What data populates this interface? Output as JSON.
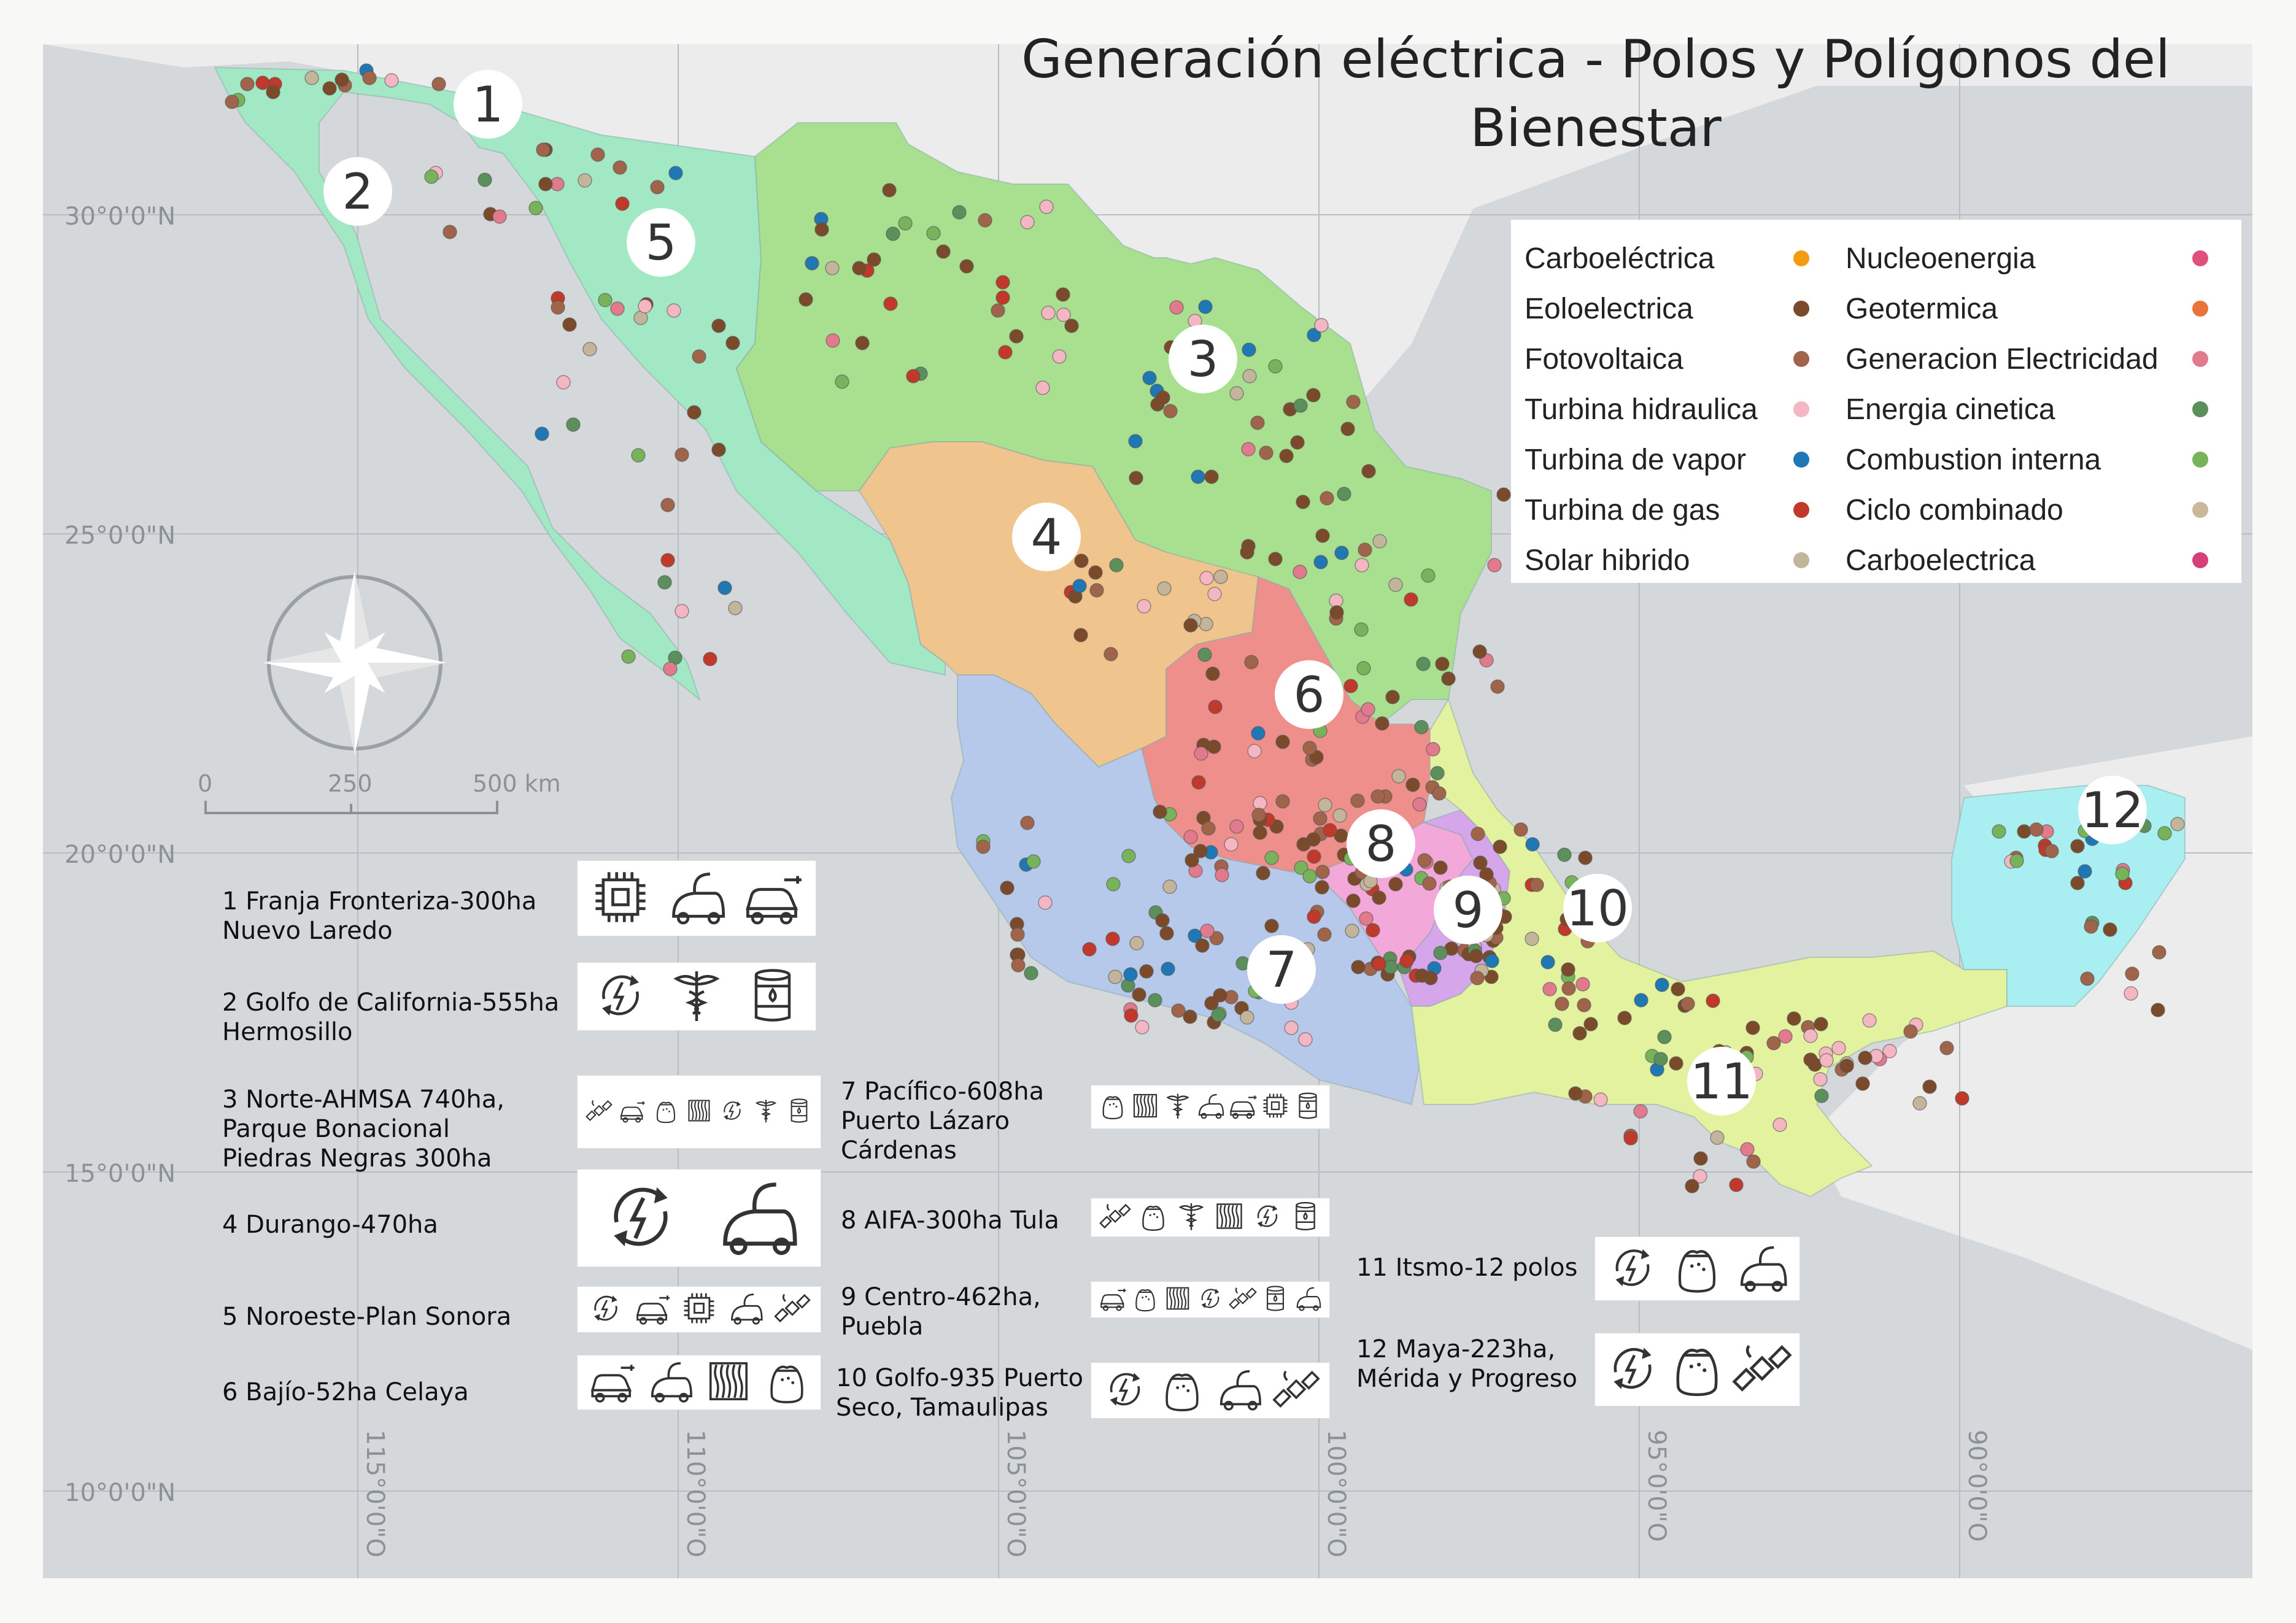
{
  "title": "Generación eléctrica - Polos y Polígonos del Bienestar",
  "legend": {
    "col1": [
      {
        "label": "Carboeléctrica",
        "color": "#f39c12"
      },
      {
        "label": "Eoloelectrica",
        "color": "#7b4a2a"
      },
      {
        "label": "Fotovoltaica",
        "color": "#a0644a"
      },
      {
        "label": "Turbina hidraulica",
        "color": "#f4b6c2"
      },
      {
        "label": "Turbina de vapor",
        "color": "#1f77b4"
      },
      {
        "label": "Turbina de gas",
        "color": "#c0392b"
      },
      {
        "label": "Solar hibrido",
        "color": "#c2b59b"
      }
    ],
    "col2": [
      {
        "label": "Nucleoenergia",
        "color": "#e0507a"
      },
      {
        "label": "Geotermica",
        "color": "#e8743b"
      },
      {
        "label": "Generacion Electricidad",
        "color": "#e07a8c"
      },
      {
        "label": "Energia cinetica",
        "color": "#5b8f5b"
      },
      {
        "label": "Combustion interna",
        "color": "#77b35a"
      },
      {
        "label": "Ciclo combinado",
        "color": "#c9b99a"
      },
      {
        "label": "Carboelectrica",
        "color": "#d64078"
      }
    ]
  },
  "graticule": {
    "lat": [
      "30°0'0\"N",
      "25°0'0\"N",
      "20°0'0\"N",
      "15°0'0\"N",
      "10°0'0\"N"
    ],
    "lon": [
      "115°0'0\"O",
      "110°0'0\"O",
      "105°0'0\"O",
      "100°0'0\"O",
      "95°0'0\"O",
      "90°0'0\"O"
    ]
  },
  "scale": {
    "labels": [
      "0",
      "250",
      "500 km"
    ]
  },
  "region_numbers": [
    "1",
    "2",
    "3",
    "4",
    "5",
    "6",
    "7",
    "8",
    "9",
    "10",
    "11",
    "12"
  ],
  "polos": [
    {
      "lines": [
        "1 Franja Fronteriza-300ha",
        "Nuevo Laredo"
      ],
      "icons": [
        "chip-icon",
        "vacuum-icon",
        "electric-car-icon"
      ]
    },
    {
      "lines": [
        "2 Golfo de California-555ha",
        "Hermosillo"
      ],
      "icons": [
        "energy-cycle-icon",
        "caduceus-icon",
        "oil-barrel-icon"
      ]
    },
    {
      "lines": [
        "3 Norte-AHMSA 740ha,",
        "Parque Bonacional",
        "Piedras Negras 300ha"
      ],
      "icons": [
        "satellite-icon",
        "electric-car-icon",
        "sack-icon",
        "textile-icon",
        "energy-cycle-icon",
        "caduceus-icon",
        "oil-barrel-icon"
      ]
    },
    {
      "lines": [
        "4 Durango-470ha"
      ],
      "icons": [
        "energy-cycle-icon",
        "vacuum-icon"
      ]
    },
    {
      "lines": [
        "5 Noroeste-Plan Sonora"
      ],
      "icons": [
        "energy-cycle-icon",
        "electric-car-icon",
        "chip-icon",
        "vacuum-icon",
        "satellite-icon"
      ]
    },
    {
      "lines": [
        "6 Bajío-52ha Celaya"
      ],
      "icons": [
        "electric-car-icon",
        "vacuum-icon",
        "textile-icon",
        "sack-icon"
      ]
    },
    {
      "lines": [
        "7 Pacífico-608ha",
        "Puerto Lázaro",
        "Cárdenas"
      ],
      "icons": [
        "sack-icon",
        "textile-icon",
        "caduceus-icon",
        "vacuum-icon",
        "electric-car-icon",
        "chip-icon",
        "oil-barrel-icon"
      ]
    },
    {
      "lines": [
        "8 AIFA-300ha Tula"
      ],
      "icons": [
        "satellite-icon",
        "sack-icon",
        "caduceus-icon",
        "textile-icon",
        "energy-cycle-icon",
        "oil-barrel-icon"
      ]
    },
    {
      "lines": [
        "9 Centro-462ha,",
        "Puebla"
      ],
      "icons": [
        "electric-car-icon",
        "sack-icon",
        "textile-icon",
        "energy-cycle-icon",
        "satellite-icon",
        "oil-barrel-icon",
        "vacuum-icon"
      ]
    },
    {
      "lines": [
        "10 Golfo-935 Puerto",
        "Seco, Tamaulipas"
      ],
      "icons": [
        "energy-cycle-icon",
        "sack-icon",
        "vacuum-icon",
        "satellite-icon"
      ]
    },
    {
      "lines": [
        "11 Itsmo-12 polos"
      ],
      "icons": [
        "energy-cycle-icon",
        "sack-icon",
        "vacuum-icon"
      ]
    },
    {
      "lines": [
        "12 Maya-223ha,",
        "Mérida y Progreso"
      ],
      "icons": [
        "energy-cycle-icon",
        "sack-icon",
        "satellite-icon"
      ]
    }
  ],
  "colors": {
    "ocean": "#d5d8db",
    "land": "#ececec",
    "region1_2_5": "#a3e8c5",
    "region3": "#a8e08f",
    "region4": "#efc48d",
    "region6": "#ef8f8b",
    "region7": "#b7c9ea",
    "region8": "#f2a9d9",
    "region9": "#d6a6ea",
    "region10_11": "#e3f29e",
    "region12": "#a9eef0"
  }
}
